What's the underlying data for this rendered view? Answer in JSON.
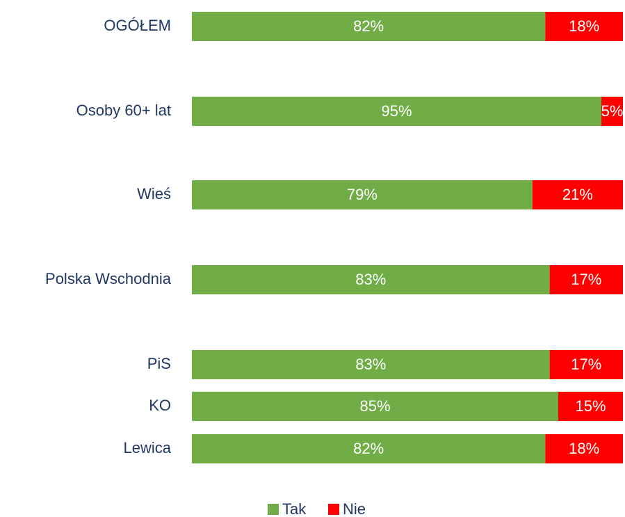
{
  "chart_data": {
    "type": "stacked-bar-horizontal",
    "categories": [
      "OGÓŁEM",
      "Osoby 60+ lat",
      "Wieś",
      "Polska Wschodnia",
      "PiS",
      "KO",
      "Lewica"
    ],
    "xlim": [
      0,
      100
    ],
    "series": [
      {
        "name": "Tak",
        "color": "#70ad47",
        "values": [
          82,
          95,
          79,
          83,
          83,
          85,
          82
        ],
        "value_labels": [
          "82%",
          "95%",
          "79%",
          "83%",
          "83%",
          "85%",
          "82%"
        ]
      },
      {
        "name": "Nie",
        "color": "#ff0000",
        "values": [
          18,
          5,
          21,
          17,
          17,
          15,
          18
        ],
        "value_labels": [
          "18%",
          "5%",
          "21%",
          "17%",
          "17%",
          "15%",
          "18%"
        ]
      }
    ]
  }
}
